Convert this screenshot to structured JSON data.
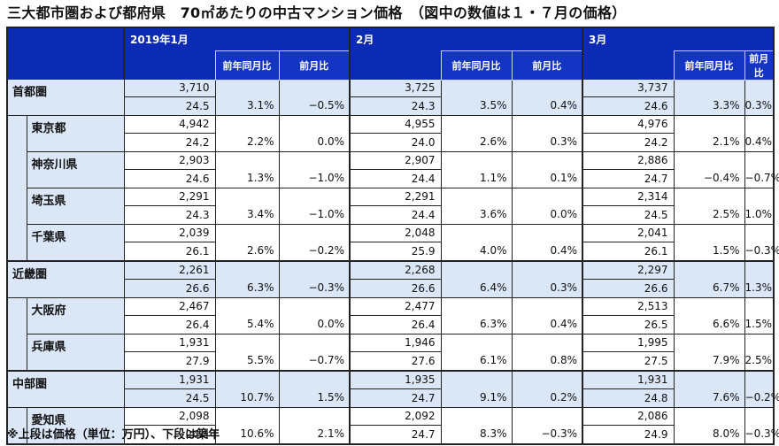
{
  "title": "三大都市圏および都府県　70㎡あたりの中古マンション価格　（図中の数値は１・７月の価格）",
  "header": {
    "months": [
      "2019年1月",
      "2月",
      "3月"
    ],
    "col_yoy": "前年同月比",
    "col_mom": "前月比"
  },
  "rows": [
    {
      "name": "首都圏",
      "type": "region",
      "months": [
        {
          "price": "3,710",
          "age": "24.5",
          "yoy": "3.1%",
          "mom": "−0.5%"
        },
        {
          "price": "3,725",
          "age": "24.3",
          "yoy": "3.5%",
          "mom": "0.4%"
        },
        {
          "price": "3,737",
          "age": "24.6",
          "yoy": "3.3%",
          "mom": "0.3%"
        }
      ]
    },
    {
      "name": "東京都",
      "type": "sub",
      "months": [
        {
          "price": "4,942",
          "age": "24.2",
          "yoy": "2.2%",
          "mom": "0.0%"
        },
        {
          "price": "4,955",
          "age": "24.0",
          "yoy": "2.6%",
          "mom": "0.3%"
        },
        {
          "price": "4,976",
          "age": "24.2",
          "yoy": "2.1%",
          "mom": "0.4%"
        }
      ]
    },
    {
      "name": "神奈川県",
      "type": "sub",
      "months": [
        {
          "price": "2,903",
          "age": "24.6",
          "yoy": "1.3%",
          "mom": "−1.0%"
        },
        {
          "price": "2,907",
          "age": "24.4",
          "yoy": "1.1%",
          "mom": "0.1%"
        },
        {
          "price": "2,886",
          "age": "24.7",
          "yoy": "−0.4%",
          "mom": "−0.7%"
        }
      ]
    },
    {
      "name": "埼玉県",
      "type": "sub",
      "months": [
        {
          "price": "2,291",
          "age": "24.3",
          "yoy": "3.4%",
          "mom": "−1.0%"
        },
        {
          "price": "2,291",
          "age": "24.4",
          "yoy": "3.6%",
          "mom": "0.0%"
        },
        {
          "price": "2,314",
          "age": "24.5",
          "yoy": "2.5%",
          "mom": "1.0%"
        }
      ]
    },
    {
      "name": "千葉県",
      "type": "sub",
      "months": [
        {
          "price": "2,039",
          "age": "26.1",
          "yoy": "2.6%",
          "mom": "−0.2%"
        },
        {
          "price": "2,048",
          "age": "25.9",
          "yoy": "4.0%",
          "mom": "0.4%"
        },
        {
          "price": "2,041",
          "age": "26.1",
          "yoy": "1.5%",
          "mom": "−0.3%"
        }
      ]
    },
    {
      "name": "近畿圏",
      "type": "region",
      "months": [
        {
          "price": "2,261",
          "age": "26.6",
          "yoy": "6.3%",
          "mom": "−0.3%"
        },
        {
          "price": "2,268",
          "age": "26.6",
          "yoy": "6.4%",
          "mom": "0.3%"
        },
        {
          "price": "2,297",
          "age": "26.6",
          "yoy": "6.7%",
          "mom": "1.3%"
        }
      ]
    },
    {
      "name": "大阪府",
      "type": "sub",
      "months": [
        {
          "price": "2,467",
          "age": "26.4",
          "yoy": "5.4%",
          "mom": "0.0%"
        },
        {
          "price": "2,477",
          "age": "26.4",
          "yoy": "6.3%",
          "mom": "0.4%"
        },
        {
          "price": "2,513",
          "age": "26.5",
          "yoy": "6.6%",
          "mom": "1.5%"
        }
      ]
    },
    {
      "name": "兵庫県",
      "type": "sub",
      "months": [
        {
          "price": "1,931",
          "age": "27.9",
          "yoy": "5.5%",
          "mom": "−0.7%"
        },
        {
          "price": "1,946",
          "age": "27.6",
          "yoy": "6.1%",
          "mom": "0.8%"
        },
        {
          "price": "1,995",
          "age": "27.5",
          "yoy": "7.9%",
          "mom": "2.5%"
        }
      ]
    },
    {
      "name": "中部圏",
      "type": "region",
      "months": [
        {
          "price": "1,931",
          "age": "24.5",
          "yoy": "10.7%",
          "mom": "1.5%"
        },
        {
          "price": "1,935",
          "age": "24.7",
          "yoy": "9.1%",
          "mom": "0.2%"
        },
        {
          "price": "1,931",
          "age": "24.8",
          "yoy": "7.6%",
          "mom": "−0.2%"
        }
      ]
    },
    {
      "name": "愛知県",
      "type": "sub",
      "months": [
        {
          "price": "2,098",
          "age": "24.4",
          "yoy": "10.6%",
          "mom": "2.1%"
        },
        {
          "price": "2,092",
          "age": "24.7",
          "yoy": "8.3%",
          "mom": "−0.3%"
        },
        {
          "price": "2,086",
          "age": "24.9",
          "yoy": "8.0%",
          "mom": "−0.3%"
        }
      ]
    }
  ],
  "footnote": "※上段は価格（単位：万円）、下段は築年"
}
